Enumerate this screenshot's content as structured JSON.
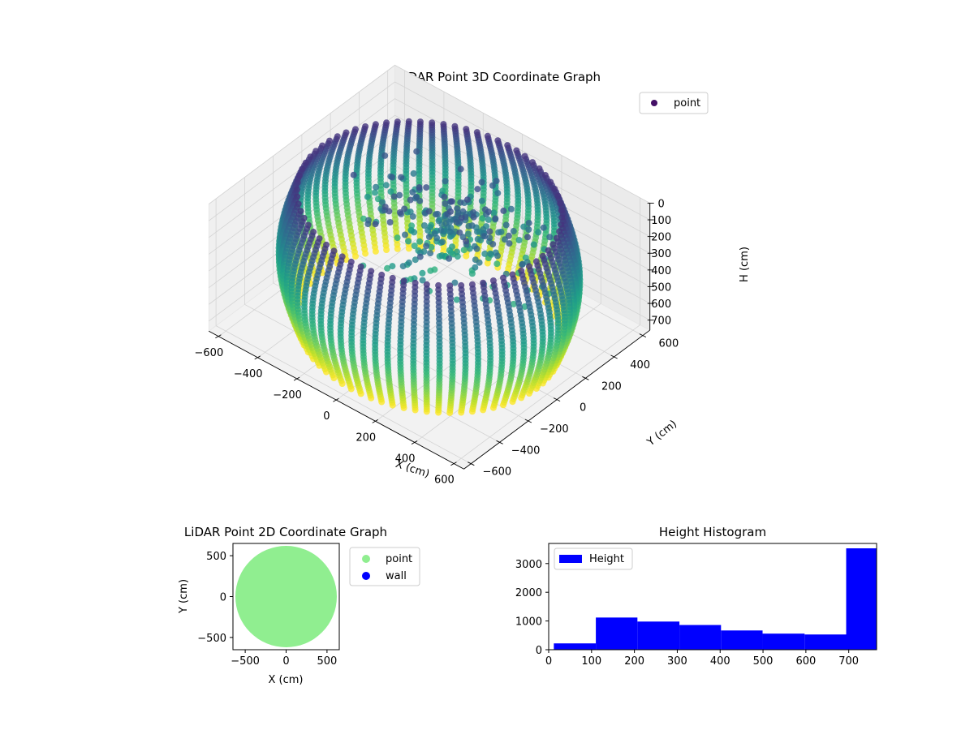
{
  "chart_data": [
    {
      "type": "scatter",
      "title": "LiDAR Point 3D Coordinate Graph",
      "xlabel": "X (cm)",
      "ylabel": "Y (cm)",
      "zlabel": "H (cm)",
      "xlim": [
        -650,
        650
      ],
      "ylim": [
        -650,
        650
      ],
      "zlim": [
        0,
        760
      ],
      "z_inverted": true,
      "grid": true,
      "legend": "top-right",
      "series": [
        {
          "name": "point",
          "colormap": "viridis"
        }
      ],
      "x_ticks": [
        "−600",
        "−400",
        "−200",
        "0",
        "200",
        "400",
        "600"
      ],
      "y_ticks": [
        "−600",
        "−400",
        "−200",
        "0",
        "200",
        "400",
        "600"
      ],
      "z_ticks": [
        "0",
        "100",
        "200",
        "300",
        "400",
        "500",
        "600",
        "700"
      ],
      "radius": 620,
      "x": [],
      "y": [],
      "z": []
    },
    {
      "type": "scatter",
      "title": "LiDAR Point 2D Coordinate Graph",
      "xlabel": "X (cm)",
      "ylabel": "Y (cm)",
      "xlim": [
        -650,
        650
      ],
      "ylim": [
        -650,
        650
      ],
      "x_ticks": [
        "−500",
        "0",
        "500"
      ],
      "y_ticks": [
        "−500",
        "0",
        "500"
      ],
      "legend": "outside-right",
      "series": [
        {
          "name": "point",
          "color": "#90ee90",
          "shape": "disk",
          "radius": 620
        },
        {
          "name": "wall",
          "color": "#0000ff",
          "values": []
        }
      ]
    },
    {
      "type": "bar",
      "title": "Height Histogram",
      "legend": "top-left",
      "series": [
        {
          "name": "Height",
          "color": "#0000ff"
        }
      ],
      "bins": [
        [
          12,
          110
        ],
        [
          110,
          207
        ],
        [
          207,
          305
        ],
        [
          305,
          402
        ],
        [
          402,
          499
        ],
        [
          499,
          597
        ],
        [
          597,
          694
        ],
        [
          694,
          765
        ]
      ],
      "values": [
        220,
        1120,
        980,
        860,
        670,
        560,
        530,
        3530
      ],
      "xlim": [
        0,
        765
      ],
      "ylim": [
        0,
        3700
      ],
      "x_ticks": [
        "0",
        "100",
        "200",
        "300",
        "400",
        "500",
        "600",
        "700"
      ],
      "y_ticks": [
        "0",
        "1000",
        "2000",
        "3000"
      ]
    }
  ]
}
